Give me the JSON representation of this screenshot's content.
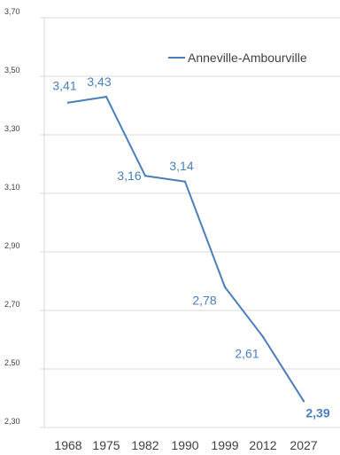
{
  "chart_data": {
    "type": "line",
    "title": "",
    "xlabel": "",
    "ylabel": "",
    "categories": [
      "1968",
      "1975",
      "1982",
      "1990",
      "1999",
      "2012",
      "2027"
    ],
    "series": [
      {
        "name": "Anneville-Ambourville",
        "values": [
          3.41,
          3.43,
          3.16,
          3.14,
          2.78,
          2.61,
          2.39
        ],
        "labels": [
          "3,41",
          "3,43",
          "3,16",
          "3,14",
          "2,78",
          "2,61",
          "2,39"
        ],
        "color": "#4a7ebb"
      }
    ],
    "ylim": [
      2.3,
      3.7
    ],
    "yticks": [
      3.7,
      3.5,
      3.3,
      3.1,
      2.9,
      2.7,
      2.5,
      2.3
    ],
    "ytick_labels": [
      "3,70",
      "3,50",
      "3,30",
      "3,10",
      "2,90",
      "2,70",
      "2,50",
      "2,30"
    ],
    "grid": "horizontal",
    "legend_position": "top-right",
    "axis_color": "#d9d9d9"
  }
}
